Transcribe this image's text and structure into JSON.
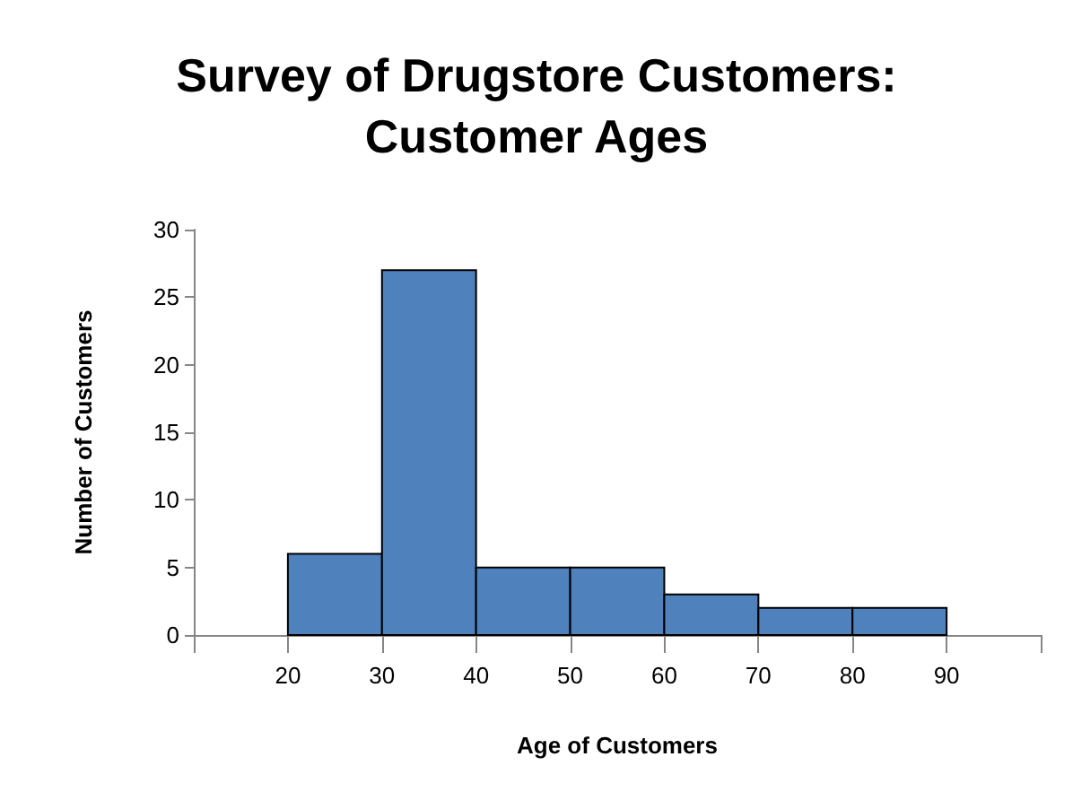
{
  "chart_data": {
    "type": "histogram",
    "title": "Survey of Drugstore Customers:\nCustomer Ages",
    "xlabel": "Age of Customers",
    "ylabel": "Number of Customers",
    "bins": [
      20,
      30,
      40,
      50,
      60,
      70,
      80,
      90
    ],
    "values": [
      6,
      27,
      5,
      5,
      3,
      2,
      2
    ],
    "color": "#4f81bd",
    "xlim": [
      10,
      100
    ],
    "xticks": [
      {
        "value": 10,
        "label": null
      },
      20,
      30,
      40,
      50,
      60,
      70,
      80,
      90,
      {
        "value": 100,
        "label": null
      }
    ],
    "ylim": [
      0,
      30
    ],
    "yticks": [
      0,
      5,
      10,
      15,
      20,
      25,
      30
    ],
    "grid": false
  }
}
